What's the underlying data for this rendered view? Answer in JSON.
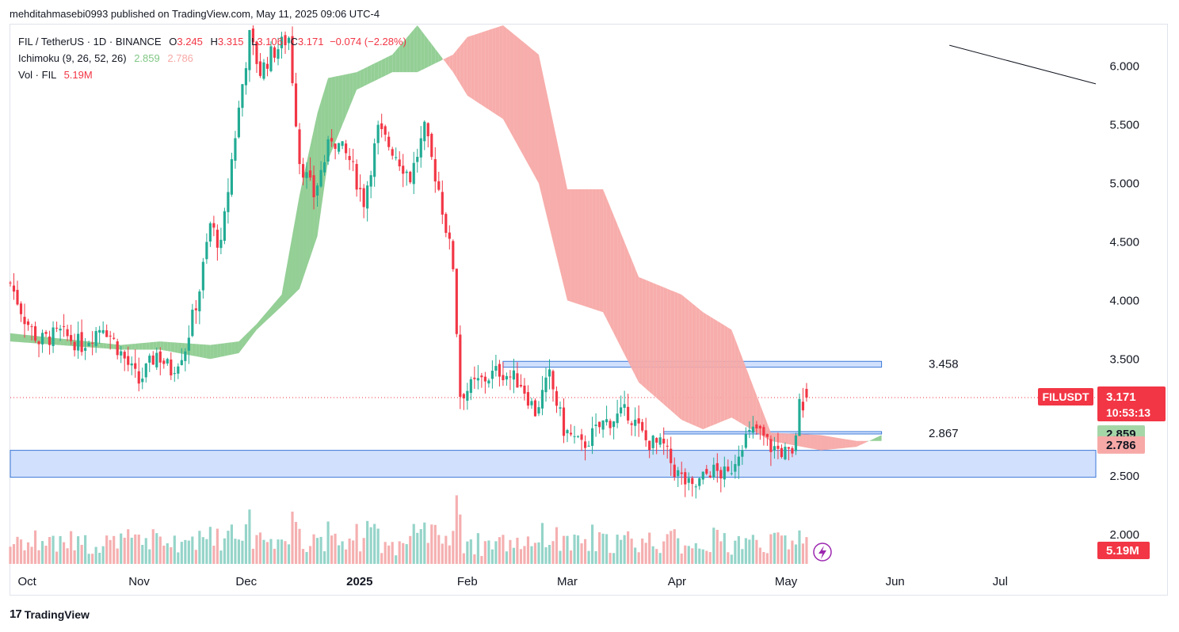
{
  "publisher_line": "mehditahmasebi0993 published on TradingView.com, May 11, 2025 09:06 UTC-4",
  "legend": {
    "symbol": "FIL / TetherUS · 1D · BINANCE",
    "o_label": "O",
    "o": "3.245",
    "h_label": "H",
    "h": "3.315",
    "l_label": "L",
    "l": "3.106",
    "c_label": "C",
    "c": "3.171",
    "change": "−0.074 (−2.28%)",
    "ichimoku_label": "Ichimoku (9, 26, 52, 26)",
    "ichimoku_a": "2.859",
    "ichimoku_b": "2.786",
    "vol_label": "Vol · FIL",
    "vol_value": "5.19M"
  },
  "footer": {
    "brand": "TradingView",
    "logo_icon": "tradingview-logo-icon"
  },
  "colors": {
    "up": "#22ab94",
    "down": "#f23645",
    "cloud_bull": "#81c784",
    "cloud_bear": "#f7a9a7",
    "zone": "#c9dbfb",
    "zone_border": "#3b78d8",
    "price_tag": "#f23645"
  },
  "chart_data": {
    "type": "candlestick",
    "symbol": "FILUSDT",
    "ylim": [
      1.75,
      6.35
    ],
    "y_ticks": [
      "6.000",
      "5.500",
      "5.000",
      "4.500",
      "4.000",
      "3.500",
      "2.500",
      "2.000"
    ],
    "x_ticks": [
      "Oct",
      "Nov",
      "Dec",
      "2025",
      "Feb",
      "Mar",
      "Apr",
      "May",
      "Jun",
      "Jul"
    ],
    "x_tick_dates": [
      "2024-10-01",
      "2024-11-01",
      "2024-12-01",
      "2025-01-01",
      "2025-02-01",
      "2025-03-01",
      "2025-04-01",
      "2025-05-01",
      "2025-06-01",
      "2025-07-01"
    ],
    "x_range": [
      "2024-09-30",
      "2025-07-31"
    ],
    "last_price": "3.171",
    "countdown": "10:53:13",
    "price_label": "FILUSDT",
    "ichimoku_a_tag": "2.859",
    "ichimoku_b_tag": "2.786",
    "volume_tag": "5.19M",
    "annotations": [
      {
        "text": "3.458",
        "price": 3.458
      },
      {
        "text": "2.867",
        "price": 2.867
      }
    ],
    "zones": [
      {
        "price_top": 3.48,
        "price_bottom": 3.43,
        "from": "2025-02-15",
        "to": "2025-06-01"
      },
      {
        "price_top": 2.88,
        "price_bottom": 2.86,
        "from": "2025-04-01",
        "to": "2025-06-01"
      },
      {
        "price_top": 2.72,
        "price_bottom": 2.49,
        "from": "2024-09-30",
        "to": "2025-07-31"
      }
    ],
    "trendline": {
      "from": [
        "2025-06-20",
        6.18
      ],
      "to": [
        "2025-07-31",
        5.85
      ]
    },
    "path_keys": {
      "close": [
        [
          "2024-09-30",
          4.15
        ],
        [
          "2024-10-04",
          3.85
        ],
        [
          "2024-10-08",
          3.65
        ],
        [
          "2024-10-14",
          3.72
        ],
        [
          "2024-10-20",
          3.62
        ],
        [
          "2024-10-26",
          3.8
        ],
        [
          "2024-10-31",
          3.55
        ],
        [
          "2024-11-05",
          3.3
        ],
        [
          "2024-11-10",
          3.55
        ],
        [
          "2024-11-14",
          3.4
        ],
        [
          "2024-11-18",
          3.6
        ],
        [
          "2024-11-22",
          4.1
        ],
        [
          "2024-11-25",
          4.65
        ],
        [
          "2024-11-28",
          4.45
        ],
        [
          "2024-12-01",
          5.2
        ],
        [
          "2024-12-04",
          5.85
        ],
        [
          "2024-12-06",
          6.25
        ],
        [
          "2024-12-09",
          5.95
        ],
        [
          "2024-12-12",
          6.1
        ],
        [
          "2024-12-17",
          6.25
        ],
        [
          "2024-12-20",
          5.2
        ],
        [
          "2024-12-24",
          4.9
        ],
        [
          "2024-12-29",
          5.4
        ],
        [
          "2025-01-03",
          5.2
        ],
        [
          "2025-01-07",
          4.85
        ],
        [
          "2025-01-11",
          5.45
        ],
        [
          "2025-01-16",
          5.25
        ],
        [
          "2025-01-20",
          5.05
        ],
        [
          "2025-01-24",
          5.45
        ],
        [
          "2025-01-28",
          4.95
        ],
        [
          "2025-02-01",
          4.3
        ],
        [
          "2025-02-03",
          3.2
        ],
        [
          "2025-02-08",
          3.3
        ],
        [
          "2025-02-14",
          3.4
        ],
        [
          "2025-02-20",
          3.3
        ],
        [
          "2025-02-24",
          3.05
        ],
        [
          "2025-02-28",
          3.35
        ],
        [
          "2025-03-04",
          2.9
        ],
        [
          "2025-03-09",
          2.75
        ],
        [
          "2025-03-15",
          2.95
        ],
        [
          "2025-03-22",
          3.05
        ],
        [
          "2025-03-27",
          2.8
        ],
        [
          "2025-04-01",
          2.75
        ],
        [
          "2025-04-04",
          2.55
        ],
        [
          "2025-04-09",
          2.38
        ],
        [
          "2025-04-14",
          2.55
        ],
        [
          "2025-04-19",
          2.5
        ],
        [
          "2025-04-23",
          2.8
        ],
        [
          "2025-04-27",
          2.9
        ],
        [
          "2025-05-01",
          2.75
        ],
        [
          "2025-05-05",
          2.7
        ],
        [
          "2025-05-07",
          2.65
        ],
        [
          "2025-05-09",
          3.1
        ],
        [
          "2025-05-11",
          3.17
        ]
      ],
      "span_a": [
        [
          "2024-09-30",
          3.72
        ],
        [
          "2024-10-31",
          3.62
        ],
        [
          "2024-11-11",
          3.65
        ],
        [
          "2024-11-25",
          3.62
        ],
        [
          "2024-12-03",
          3.65
        ],
        [
          "2024-12-08",
          3.8
        ],
        [
          "2024-12-15",
          4.05
        ],
        [
          "2024-12-20",
          4.9
        ],
        [
          "2024-12-25",
          5.6
        ],
        [
          "2024-12-28",
          5.9
        ],
        [
          "2025-01-05",
          5.95
        ],
        [
          "2025-01-15",
          6.1
        ],
        [
          "2025-01-22",
          6.35
        ],
        [
          "2025-02-01",
          5.95
        ],
        [
          "2025-02-05",
          5.75
        ],
        [
          "2025-02-15",
          5.55
        ],
        [
          "2025-02-25",
          5.0
        ],
        [
          "2025-03-05",
          4.0
        ],
        [
          "2025-03-15",
          3.9
        ],
        [
          "2025-03-25",
          3.3
        ],
        [
          "2025-04-06",
          2.98
        ],
        [
          "2025-04-12",
          2.9
        ],
        [
          "2025-04-20",
          3.0
        ],
        [
          "2025-05-01",
          2.8
        ],
        [
          "2025-05-15",
          2.72
        ],
        [
          "2025-05-25",
          2.75
        ],
        [
          "2025-06-01",
          2.85
        ]
      ],
      "span_b": [
        [
          "2024-09-30",
          3.65
        ],
        [
          "2024-10-31",
          3.58
        ],
        [
          "2024-11-11",
          3.58
        ],
        [
          "2024-11-25",
          3.5
        ],
        [
          "2024-12-03",
          3.55
        ],
        [
          "2024-12-08",
          3.75
        ],
        [
          "2024-12-15",
          3.95
        ],
        [
          "2024-12-20",
          4.1
        ],
        [
          "2024-12-25",
          4.55
        ],
        [
          "2024-12-28",
          5.2
        ],
        [
          "2025-01-05",
          5.8
        ],
        [
          "2025-01-15",
          5.95
        ],
        [
          "2025-01-22",
          5.95
        ],
        [
          "2025-02-01",
          6.1
        ],
        [
          "2025-02-05",
          6.25
        ],
        [
          "2025-02-15",
          6.35
        ],
        [
          "2025-02-25",
          6.1
        ],
        [
          "2025-03-05",
          4.95
        ],
        [
          "2025-03-15",
          4.95
        ],
        [
          "2025-03-25",
          4.2
        ],
        [
          "2025-04-06",
          4.05
        ],
        [
          "2025-04-12",
          3.9
        ],
        [
          "2025-04-20",
          3.75
        ],
        [
          "2025-05-01",
          2.87
        ],
        [
          "2025-05-15",
          2.85
        ],
        [
          "2025-05-25",
          2.8
        ],
        [
          "2025-06-01",
          2.8
        ]
      ]
    }
  }
}
